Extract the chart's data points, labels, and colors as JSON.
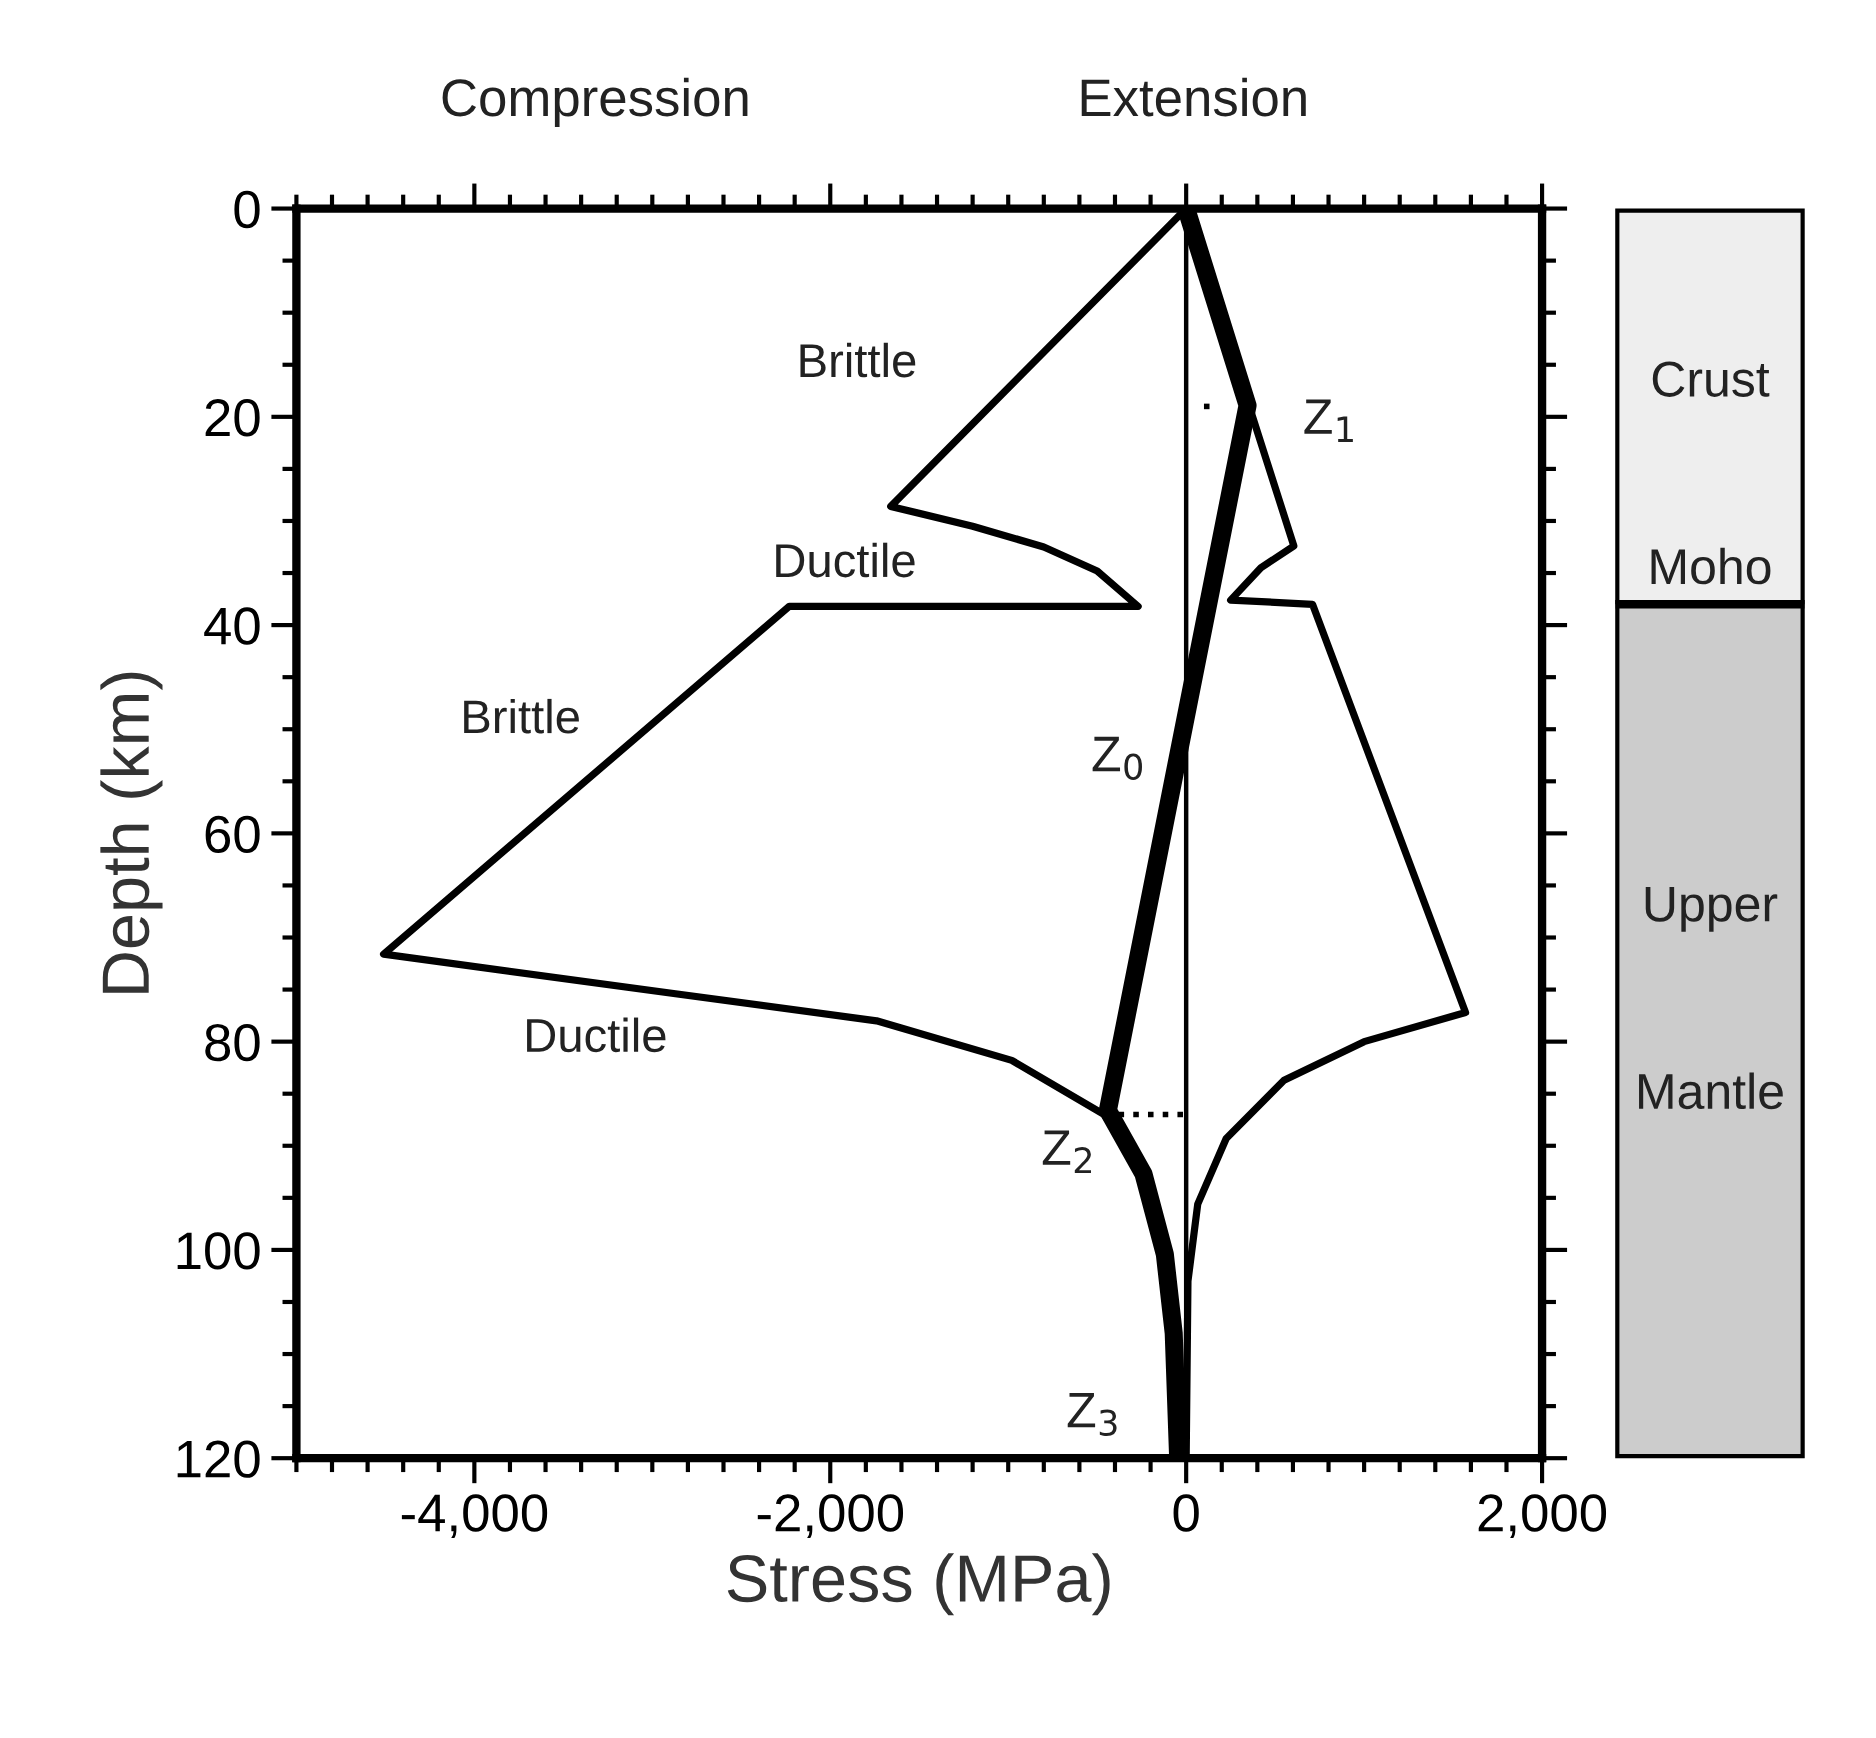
{
  "chart_data": [
    {
      "type": "line",
      "xlabel": "Stress (MPa)",
      "ylabel": "Depth (km)",
      "xlim": [
        -5000,
        2000
      ],
      "ylim": [
        120,
        0
      ],
      "xticks": [
        {
          "value": -4000,
          "label": "-4,000"
        },
        {
          "value": -2000,
          "label": "-2,000"
        },
        0,
        {
          "value": 2000,
          "label": "2,000"
        }
      ],
      "yticks": [
        0,
        20,
        40,
        60,
        80,
        100,
        120
      ],
      "grid": false,
      "legend": false,
      "marker": "none",
      "series": [
        {
          "color": "#000000",
          "x": [
            0,
            -1660,
            -1200,
            -800,
            -500,
            -270,
            -2230,
            -4510,
            -2870,
            -1740,
            -980,
            -460,
            -240,
            -120,
            -70,
            -45
          ],
          "values": [
            0,
            28.6,
            30.5,
            32.5,
            34.8,
            38.2,
            38.2,
            71.6,
            75.4,
            78,
            81.8,
            87,
            92.7,
            100.4,
            108,
            120
          ]
        },
        {
          "color": "#000000",
          "x": [
            0,
            605,
            420,
            250,
            710,
            1570,
            1000,
            550,
            225,
            65,
            10,
            0
          ],
          "values": [
            0,
            32.4,
            34.5,
            37.6,
            38,
            77.2,
            80,
            83.7,
            89.3,
            95.6,
            103,
            120
          ]
        },
        {
          "color": "#000000",
          "x": [
            0,
            345,
            -440,
            -240,
            -120,
            -70,
            -45
          ],
          "values": [
            0,
            18.9,
            86.6,
            92.7,
            100.4,
            108,
            120
          ]
        },
        {
          "color": "#000000",
          "line_style": "dotted",
          "x": [
            -380,
            0
          ],
          "values": [
            87,
            87
          ]
        },
        {
          "color": "#000000",
          "line_style": "dotted",
          "x": [
            100,
            170
          ],
          "values": [
            19,
            19
          ]
        }
      ],
      "ref_lines": [
        {
          "axis": "x",
          "value": 0,
          "color": "#000000"
        }
      ],
      "annotations": [
        "Compression",
        "Extension",
        "Brittle",
        "Ductile",
        "Brittle",
        "Ductile",
        "Z$_{0}$",
        "Z$_{1}$",
        "Z$_{2}$",
        "Z$_{3}$"
      ]
    },
    {
      "type": "bar",
      "stacked": true,
      "categories": [
        null
      ],
      "ylim": [
        120,
        0
      ],
      "tick_labels": false,
      "series": [
        {
          "color": "#eeeeee",
          "values": [
            38
          ]
        },
        {
          "color": "#cccccc",
          "values": [
            82
          ]
        }
      ],
      "annotations": [
        "Crust",
        "Moho",
        "Upper",
        "Mantle"
      ]
    }
  ]
}
